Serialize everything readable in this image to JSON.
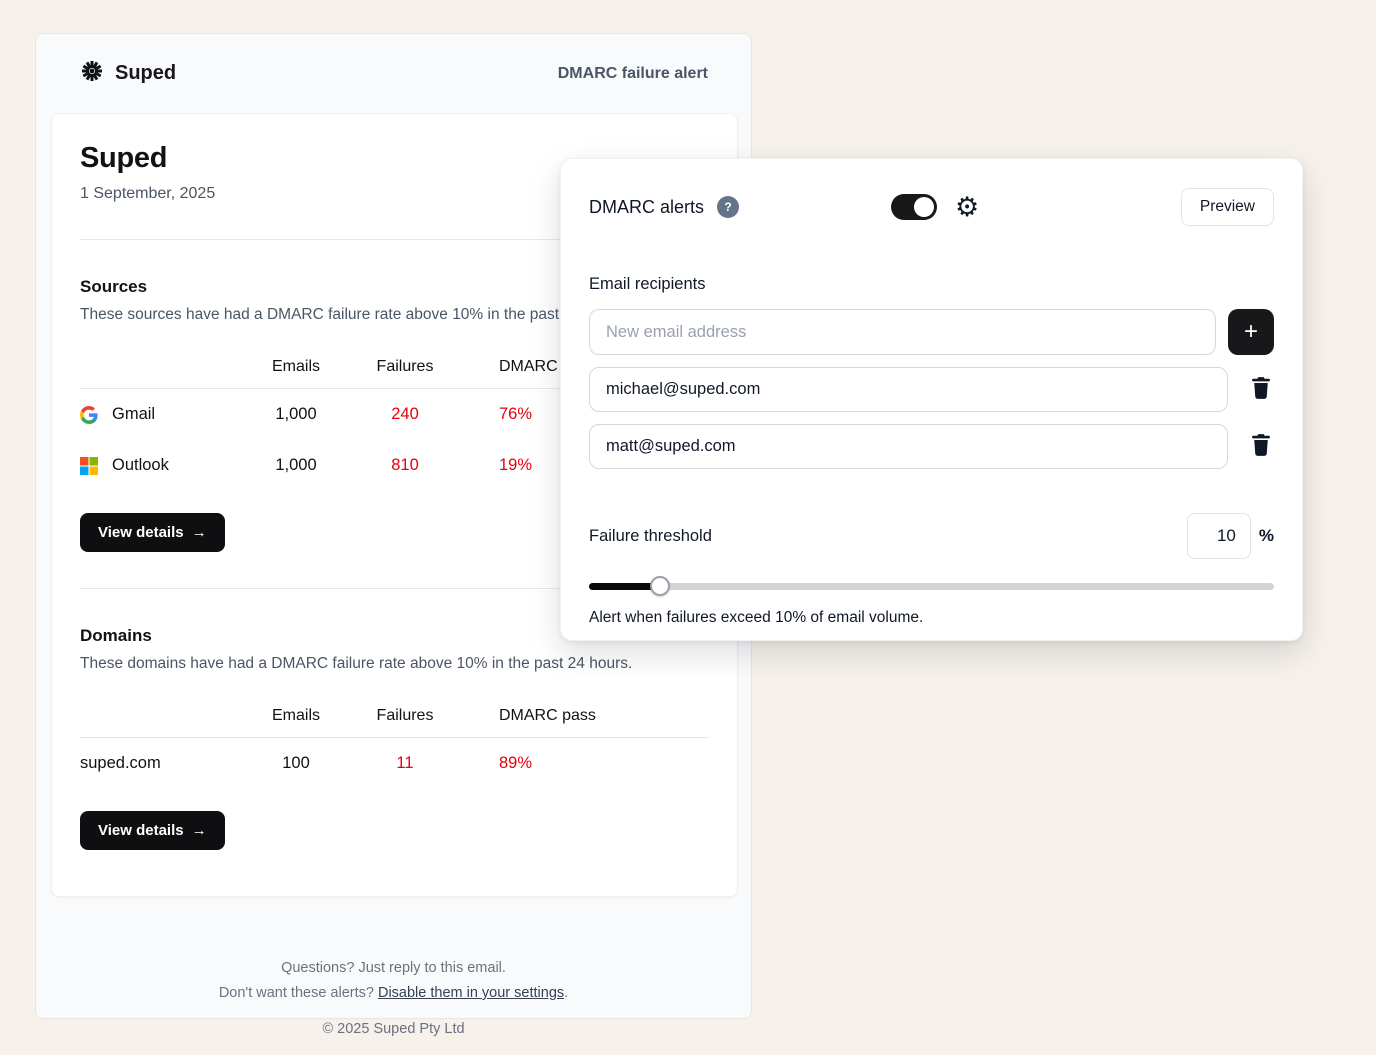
{
  "email": {
    "brand": "Suped",
    "header_label": "DMARC failure alert",
    "title": "Suped",
    "date": "1 September, 2025",
    "sources": {
      "heading": "Sources",
      "description": "These sources have had a DMARC failure rate above 10% in the past 24 hours.",
      "columns": [
        "Emails",
        "Failures",
        "DMARC pass"
      ],
      "rows": [
        {
          "name": "Gmail",
          "emails": "1,000",
          "failures": "240",
          "pass": "76%"
        },
        {
          "name": "Outlook",
          "emails": "1,000",
          "failures": "810",
          "pass": "19%"
        }
      ],
      "cta_label": "View details",
      "cta_arrow": "→"
    },
    "domains": {
      "heading": "Domains",
      "description": "These domains have had a DMARC failure rate above 10% in the past 24 hours.",
      "columns": [
        "Emails",
        "Failures",
        "DMARC pass"
      ],
      "rows": [
        {
          "name": "suped.com",
          "emails": "100",
          "failures": "11",
          "pass": "89%"
        }
      ],
      "cta_label": "View details",
      "cta_arrow": "→"
    },
    "footer": {
      "line1": "Questions? Just reply to this email.",
      "line2_prefix": "Don't want these alerts? ",
      "line2_link": "Disable them in your settings",
      "line2_suffix": ".",
      "copyright": "© 2025 Suped Pty Ltd"
    }
  },
  "panel": {
    "title": "DMARC alerts",
    "help_label": "?",
    "toggle_state": "on",
    "gear_glyph": "⚙",
    "preview_label": "Preview",
    "recipients": {
      "label": "Email recipients",
      "placeholder": "New email address",
      "add_label": "+",
      "emails": [
        "michael@suped.com",
        "matt@suped.com"
      ]
    },
    "threshold": {
      "label": "Failure threshold",
      "value": "10",
      "unit": "%",
      "percent": 10,
      "caption": "Alert when failures exceed 10% of email volume."
    }
  },
  "colors": {
    "page_bg": "#f6f1ea",
    "failure_red": "#e7000b",
    "accent_dark": "#18181b",
    "panel_text": "#101828",
    "muted_text": "#4a5565"
  }
}
